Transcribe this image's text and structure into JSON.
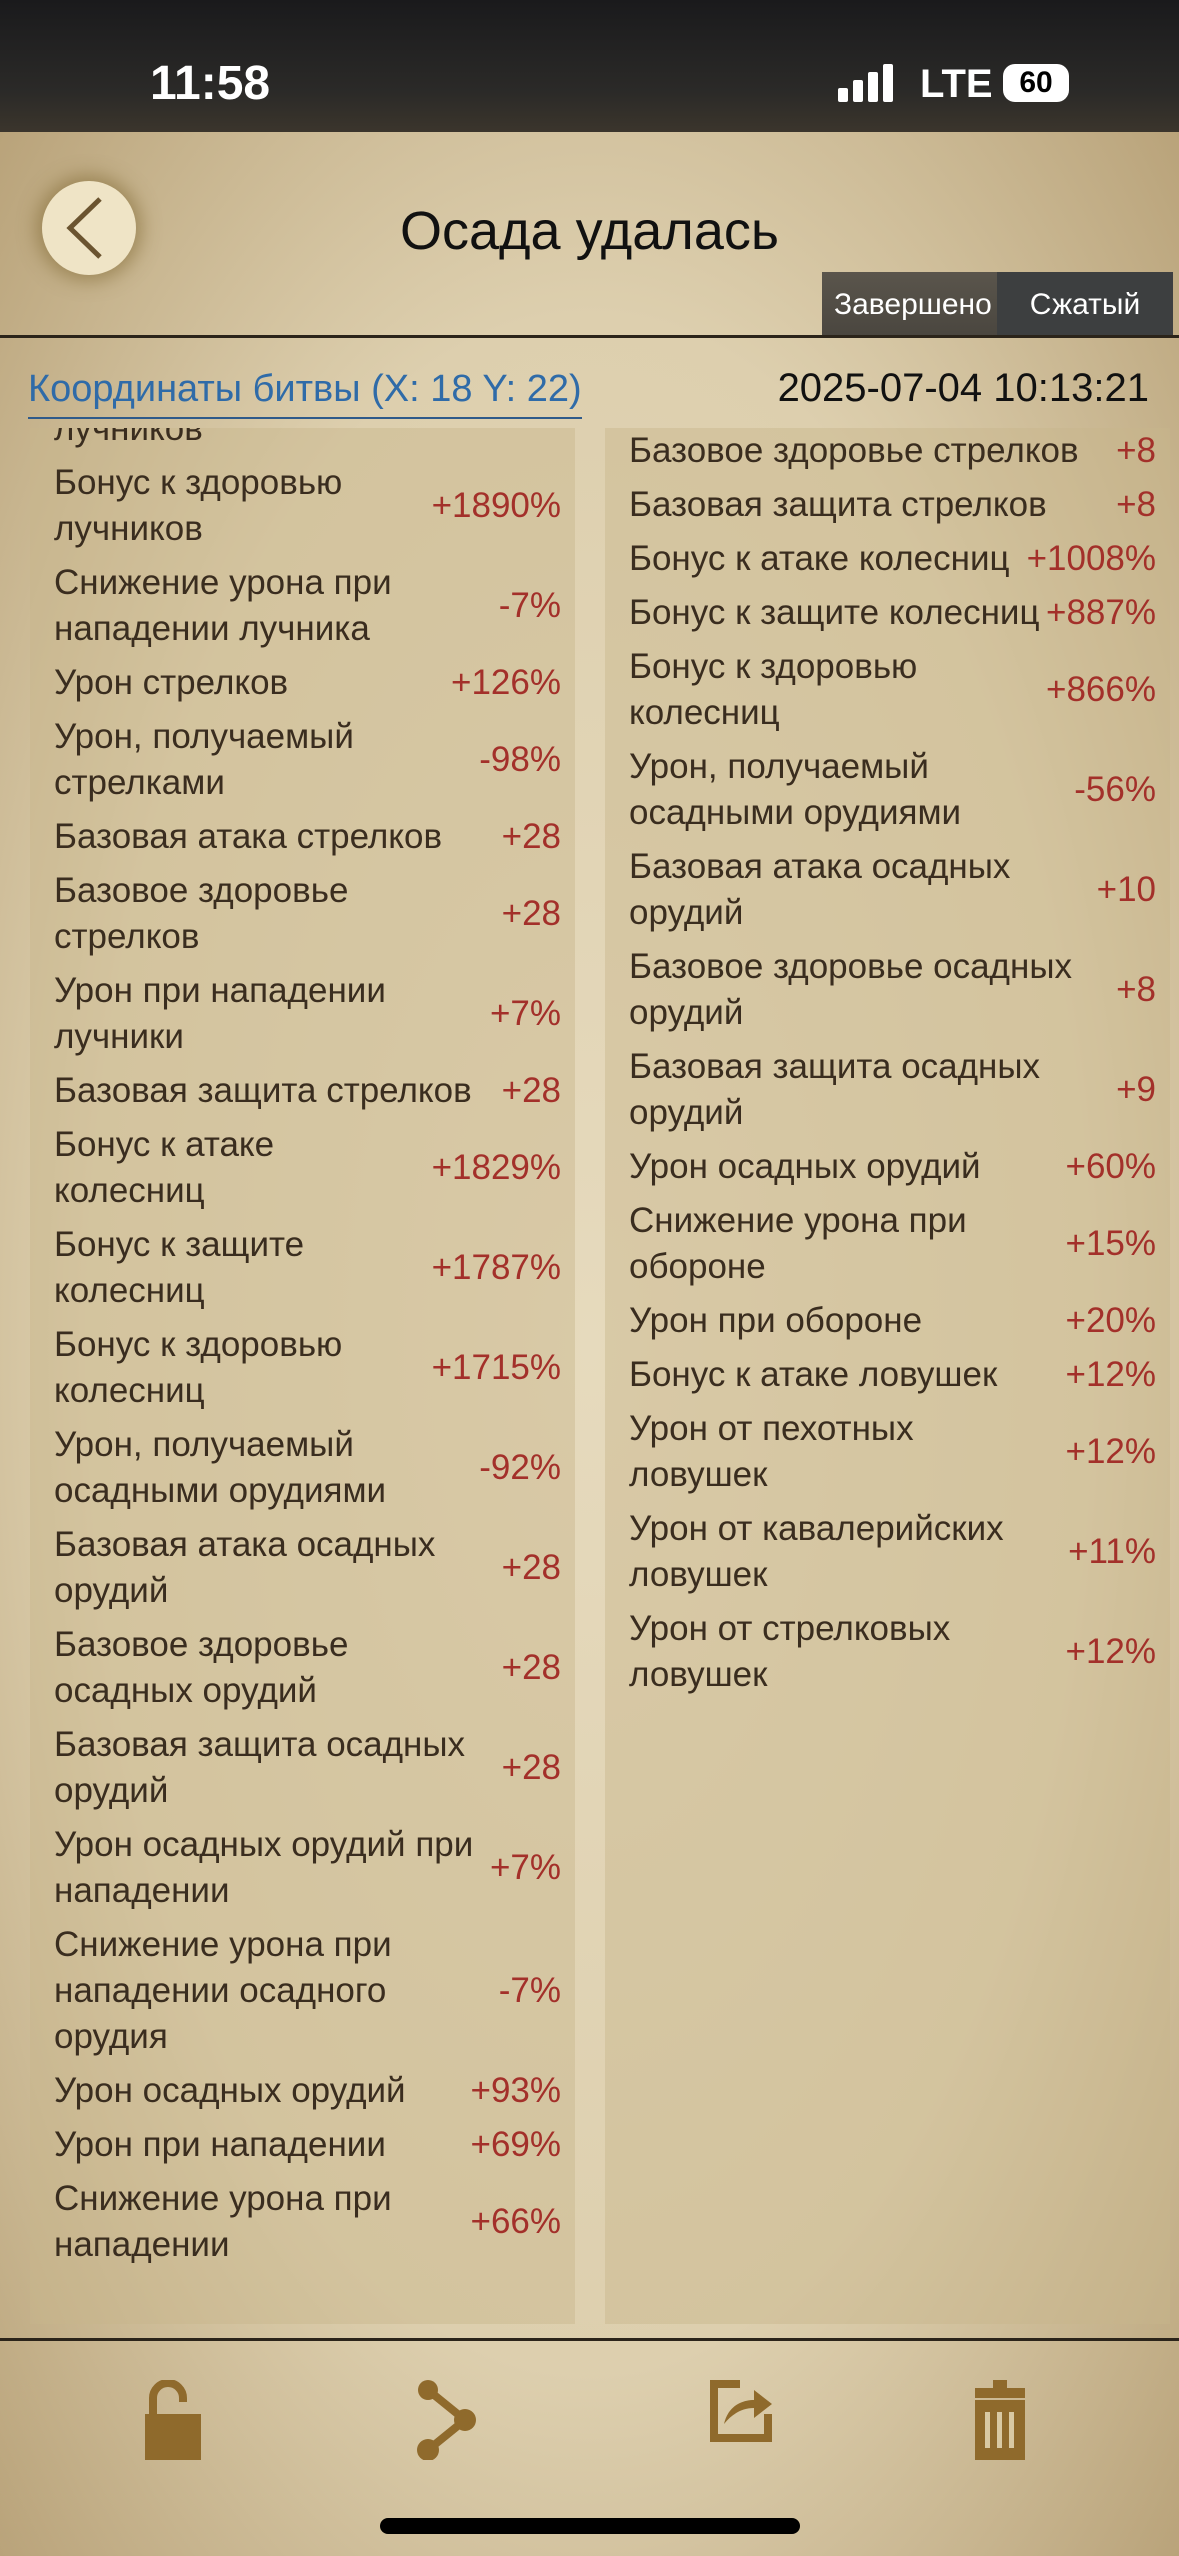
{
  "status": {
    "time": "11:58",
    "network": "LTE",
    "battery": "60"
  },
  "header": {
    "title": "Осада удалась",
    "tabs": [
      "Завершено",
      "Сжатый"
    ]
  },
  "info": {
    "coordinates": "Координаты битвы (X: 18 Y: 22)",
    "datetime": "2025-07-04  10:13:21"
  },
  "left": [
    {
      "label": "лучников",
      "value": ""
    },
    {
      "label": "Бонус к здоровью лучников",
      "value": "+1890%"
    },
    {
      "label": "Снижение урона при нападении лучника",
      "value": "-7%"
    },
    {
      "label": "Урон стрелков",
      "value": "+126%"
    },
    {
      "label": "Урон, получаемый стрелками",
      "value": "-98%"
    },
    {
      "label": "Базовая атака стрелков",
      "value": "+28"
    },
    {
      "label": "Базовое здоровье стрелков",
      "value": "+28"
    },
    {
      "label": "Урон при нападении лучники",
      "value": "+7%"
    },
    {
      "label": "Базовая защита стрелков",
      "value": "+28"
    },
    {
      "label": "Бонус к атаке колесниц",
      "value": "+1829%"
    },
    {
      "label": "Бонус к защите колесниц",
      "value": "+1787%"
    },
    {
      "label": "Бонус к здоровью колесниц",
      "value": "+1715%"
    },
    {
      "label": "Урон, получаемый осадными орудиями",
      "value": "-92%"
    },
    {
      "label": "Базовая атака осадных орудий",
      "value": "+28"
    },
    {
      "label": "Базовое здоровье осадных орудий",
      "value": "+28"
    },
    {
      "label": "Базовая защита осадных орудий",
      "value": "+28"
    },
    {
      "label": "Урон осадных орудий при нападении",
      "value": "+7%"
    },
    {
      "label": "Снижение урона при нападении осадного орудия",
      "value": "-7%"
    },
    {
      "label": "Урон осадных орудий",
      "value": "+93%"
    },
    {
      "label": "Урон при нападении",
      "value": "+69%"
    },
    {
      "label": "Снижение урона при нападении",
      "value": "+66%"
    }
  ],
  "right": [
    {
      "label": "Базовое здоровье стрелков",
      "value": "+8"
    },
    {
      "label": "Базовая защита стрелков",
      "value": "+8"
    },
    {
      "label": "Бонус к атаке колесниц",
      "value": "+1008%"
    },
    {
      "label": "Бонус к защите колесниц",
      "value": "+887%"
    },
    {
      "label": "Бонус к здоровью колесниц",
      "value": "+866%"
    },
    {
      "label": "Урон, получаемый осадными орудиями",
      "value": "-56%"
    },
    {
      "label": "Базовая атака осадных орудий",
      "value": "+10"
    },
    {
      "label": "Базовое здоровье осадных орудий",
      "value": "+8"
    },
    {
      "label": "Базовая защита осадных орудий",
      "value": "+9"
    },
    {
      "label": "Урон осадных орудий",
      "value": "+60%"
    },
    {
      "label": "Снижение урона при обороне",
      "value": "+15%"
    },
    {
      "label": "Урон при обороне",
      "value": "+20%"
    },
    {
      "label": "Бонус к атаке ловушек",
      "value": "+12%"
    },
    {
      "label": "Урон от пехотных ловушек",
      "value": "+12%"
    },
    {
      "label": "Урон от кавалерийских ловушек",
      "value": "+11%"
    },
    {
      "label": "Урон от стрелковых ловушек",
      "value": "+12%"
    }
  ],
  "toolbar": {
    "icons": [
      "unlock-icon",
      "share-icon",
      "export-icon",
      "trash-icon"
    ],
    "icon_color": "#8f6a2c"
  }
}
